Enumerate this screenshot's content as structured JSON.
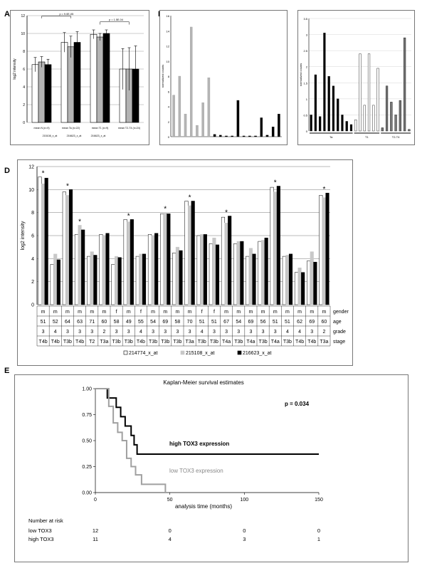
{
  "panel_labels": {
    "a": "A",
    "b": "B",
    "c": "C",
    "d": "D",
    "e": "E"
  },
  "chart_data": [
    {
      "panel": "A",
      "type": "bar",
      "ylabel": "log2 intensity",
      "ylim": [
        0,
        12
      ],
      "yticks": [
        "12",
        "10",
        "8",
        "6",
        "4",
        "2",
        "0"
      ],
      "grid": true,
      "categories": [
        "mean N (n=9)",
        "mean Ta (n=22)",
        "mean T1 (n=9)",
        "mean T2-T4 (n=24)"
      ],
      "series": [
        {
          "name": "215108_x_at",
          "color": "#ffffff",
          "values": [
            6.5,
            9.0,
            9.9,
            6.0
          ],
          "errors": [
            0.8,
            1.1,
            0.5,
            2.3
          ]
        },
        {
          "name": "216623_x_at",
          "color": "#b4b4b4",
          "values": [
            6.8,
            8.5,
            9.6,
            6.0
          ],
          "errors": [
            0.6,
            1.2,
            0.4,
            2.4
          ]
        },
        {
          "name": "216623_x_at",
          "color": "#000000",
          "values": [
            6.5,
            9.0,
            10.0,
            6.0
          ],
          "errors": [
            0.6,
            1.2,
            0.4,
            2.6
          ]
        }
      ],
      "legend_labels": [
        "215108_x_at",
        "216623_x_at",
        "216623_x_at"
      ],
      "annotations": [
        "p = 9.0E-05",
        "p = 1.5E-04"
      ]
    },
    {
      "panel": "B",
      "type": "bar",
      "ylabel": "normalized counts",
      "ylim": [
        0,
        16
      ],
      "yticks": [
        "16",
        "14",
        "12",
        "10",
        "8",
        "6",
        "4",
        "2",
        "0"
      ],
      "values": [
        5.5,
        8.0,
        3.0,
        14.5,
        1.5,
        4.5,
        7.8,
        0.3,
        0.2,
        0.1,
        0.1,
        4.8,
        0.1,
        0.1,
        0.1,
        2.5,
        0.2,
        1.3,
        3.0
      ],
      "colors": [
        "#b4b4b4",
        "#b4b4b4",
        "#b4b4b4",
        "#b4b4b4",
        "#b4b4b4",
        "#b4b4b4",
        "#b4b4b4",
        "#000000",
        "#000000",
        "#000000",
        "#000000",
        "#000000",
        "#000000",
        "#000000",
        "#000000",
        "#000000",
        "#000000",
        "#000000",
        "#000000"
      ]
    },
    {
      "panel": "C",
      "type": "bar",
      "ylabel": "normalized counts",
      "ylim": [
        0,
        3.5
      ],
      "yticks": [
        "3.5",
        "3",
        "2.5",
        "2",
        "1.5",
        "1",
        "0.5",
        "0"
      ],
      "groups": [
        "Ta",
        "T1",
        "T2-T4"
      ],
      "values": [
        0.5,
        1.75,
        0.45,
        3.05,
        1.7,
        1.4,
        1.0,
        0.5,
        0.3,
        0.2,
        0.35,
        2.4,
        0.8,
        2.4,
        0.8,
        1.95,
        0.1,
        1.4,
        0.9,
        0.5,
        0.95,
        2.9,
        0.05
      ],
      "colors": [
        "#000000",
        "#000000",
        "#000000",
        "#000000",
        "#000000",
        "#000000",
        "#000000",
        "#000000",
        "#000000",
        "#000000",
        "#ffffff",
        "#ffffff",
        "#ffffff",
        "#ffffff",
        "#ffffff",
        "#ffffff",
        "#777777",
        "#777777",
        "#777777",
        "#777777",
        "#777777",
        "#777777",
        "#777777"
      ],
      "group_of_bar": [
        0,
        0,
        0,
        0,
        0,
        0,
        0,
        0,
        0,
        0,
        1,
        1,
        1,
        1,
        1,
        1,
        2,
        2,
        2,
        2,
        2,
        2,
        2
      ]
    },
    {
      "panel": "D",
      "type": "bar",
      "ylabel": "log2 intensity",
      "ylim": [
        0,
        12
      ],
      "yticks": [
        "12",
        "10",
        "8",
        "6",
        "4",
        "2",
        "0"
      ],
      "series": [
        {
          "name": "214774_x_at",
          "color": "#ffffff",
          "values": [
            11.1,
            3.5,
            9.8,
            6.1,
            4.2,
            6.1,
            3.5,
            7.4,
            4.2,
            6.1,
            7.9,
            4.5,
            9.0,
            6.0,
            5.3,
            7.6,
            5.3,
            4.2,
            5.5,
            10.2,
            4.2,
            2.8,
            3.8,
            9.5
          ]
        },
        {
          "name": "215108_x_at",
          "color": "#c8c8c8",
          "values": [
            10.5,
            4.4,
            9.5,
            6.9,
            4.6,
            6.0,
            4.2,
            7.2,
            4.4,
            6.0,
            8.0,
            5.0,
            8.6,
            6.1,
            5.8,
            7.1,
            5.5,
            4.9,
            5.6,
            9.8,
            4.3,
            3.2,
            4.6,
            9.3
          ]
        },
        {
          "name": "216623_x_at",
          "color": "#000000",
          "values": [
            11.0,
            3.9,
            10.0,
            6.5,
            4.3,
            6.2,
            4.1,
            7.4,
            4.4,
            6.2,
            7.9,
            4.7,
            9.0,
            6.1,
            5.2,
            7.7,
            5.5,
            4.4,
            5.8,
            10.3,
            4.4,
            2.8,
            3.7,
            9.7
          ]
        }
      ],
      "stars": [
        true,
        false,
        true,
        true,
        false,
        false,
        false,
        true,
        false,
        false,
        true,
        false,
        true,
        false,
        false,
        true,
        false,
        false,
        false,
        true,
        false,
        false,
        false,
        true
      ],
      "table": {
        "row_labels": [
          "gender",
          "age",
          "grade",
          "stage"
        ],
        "gender": [
          "m",
          "m",
          "m",
          "m",
          "m",
          "m",
          "f",
          "m",
          "f",
          "m",
          "m",
          "m",
          "m",
          "f",
          "f",
          "m",
          "m",
          "m",
          "m",
          "m",
          "m",
          "m",
          "m",
          "m"
        ],
        "age": [
          "51",
          "52",
          "64",
          "63",
          "71",
          "60",
          "58",
          "49",
          "55",
          "54",
          "69",
          "58",
          "70",
          "51",
          "51",
          "67",
          "54",
          "69",
          "56",
          "51",
          "51",
          "62",
          "69",
          "60"
        ],
        "grade": [
          "3",
          "4",
          "3",
          "3",
          "3",
          "2",
          "3",
          "3",
          "4",
          "3",
          "3",
          "3",
          "3",
          "4",
          "3",
          "3",
          "3",
          "3",
          "3",
          "3",
          "4",
          "4",
          "3",
          "2"
        ],
        "stage": [
          "T4b",
          "T4b",
          "T3b",
          "T4b",
          "T2",
          "T3a",
          "T3b",
          "T3b",
          "T4b",
          "T3b",
          "T3b",
          "T3b",
          "T3a",
          "T3b",
          "T3b",
          "T4a",
          "T3b",
          "T4a",
          "T3b",
          "T4a",
          "T3b",
          "T4b",
          "T4b",
          "T3a"
        ]
      },
      "legend": [
        "214774_x_at",
        "215108_x_at",
        "216623_x_at"
      ]
    },
    {
      "panel": "E",
      "type": "line",
      "title": "Kaplan-Meier survival estimates",
      "xlabel": "analysis time  (months)",
      "xlim": [
        0,
        150
      ],
      "xticks": [
        "0",
        "50",
        "100",
        "150"
      ],
      "ylim": [
        0,
        1
      ],
      "yticks": [
        "1.00",
        "0.75",
        "0.50",
        "0.25",
        "0.00"
      ],
      "pvalue": "p = 0.034",
      "series": [
        {
          "name": "high TOX3 expression",
          "color": "#000000",
          "x": [
            0,
            8,
            8,
            14,
            14,
            17,
            17,
            20,
            20,
            24,
            24,
            26,
            26,
            28,
            28,
            150
          ],
          "y": [
            1.0,
            1.0,
            0.91,
            0.91,
            0.82,
            0.82,
            0.73,
            0.73,
            0.64,
            0.64,
            0.55,
            0.55,
            0.46,
            0.46,
            0.37,
            0.37
          ]
        },
        {
          "name": "low TOX3 expression",
          "color": "#a0a0a0",
          "x": [
            0,
            9,
            9,
            12,
            12,
            15,
            15,
            18,
            18,
            21,
            21,
            24,
            24,
            27,
            27,
            31,
            31,
            47,
            47
          ],
          "y": [
            1.0,
            1.0,
            0.83,
            0.83,
            0.67,
            0.67,
            0.58,
            0.58,
            0.5,
            0.5,
            0.33,
            0.33,
            0.25,
            0.25,
            0.17,
            0.17,
            0.08,
            0.08,
            0.0
          ]
        }
      ],
      "risk_table": {
        "header": "Number at risk",
        "rows": [
          {
            "label": "low TOX3",
            "values": [
              "12",
              "0",
              "0",
              "0"
            ]
          },
          {
            "label": "high TOX3",
            "values": [
              "11",
              "4",
              "3",
              "1"
            ]
          }
        ]
      }
    }
  ]
}
